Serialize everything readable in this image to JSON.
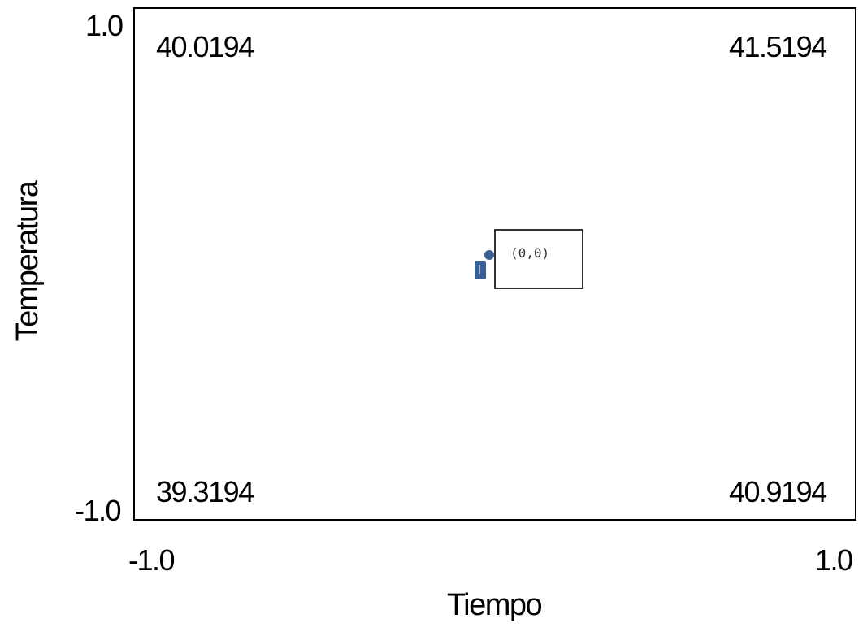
{
  "chart_data": {
    "type": "heatmap",
    "xlabel": "Tiempo",
    "ylabel": "Temperatura",
    "xlim": [
      -1.0,
      1.0
    ],
    "ylim": [
      -1.0,
      1.0
    ],
    "x_ticks": [
      "-1.0",
      "1.0"
    ],
    "y_ticks": [
      "1.0",
      "-1.0"
    ],
    "corner_values": {
      "top_left": "40.0194",
      "top_right": "41.5194",
      "bottom_left": "39.3194",
      "bottom_right": "40.9194"
    },
    "grid": false,
    "annotation": {
      "label": "(0,0)",
      "x": 0,
      "y": 0
    }
  },
  "colors": {
    "handle": "#3a5f94",
    "frame": "#000000"
  }
}
